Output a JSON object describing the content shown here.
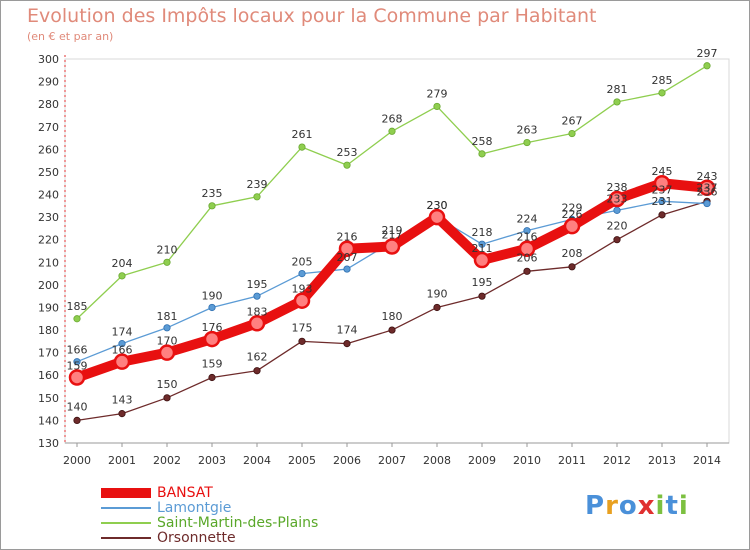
{
  "header": {
    "title": "Evolution des Impôts locaux pour la Commune par Habitant",
    "subtitle": "(en € et par an)"
  },
  "logo": {
    "letters": [
      "P",
      "r",
      "o",
      "x",
      "i",
      "t",
      "i"
    ],
    "colors": [
      "#4a90d9",
      "#e8a020",
      "#4a90d9",
      "#e03030",
      "#7cc040",
      "#4a90d9",
      "#7cc040"
    ]
  },
  "chart_data": {
    "type": "line",
    "title": "Evolution des Impôts locaux pour la Commune par Habitant",
    "subtitle": "(en € et par an)",
    "x": [
      "2000",
      "2001",
      "2002",
      "2003",
      "2004",
      "2005",
      "2006",
      "2007",
      "2008",
      "2009",
      "2010",
      "2011",
      "2012",
      "2013",
      "2014"
    ],
    "ylim": [
      130,
      300
    ],
    "yticks": [
      130,
      140,
      150,
      160,
      170,
      180,
      190,
      200,
      210,
      220,
      230,
      240,
      250,
      260,
      270,
      280,
      290,
      300
    ],
    "grid": false,
    "legend": "bottom-left",
    "series": [
      {
        "name": "BANSAT",
        "color": "#e81010",
        "values": [
          159,
          166,
          170,
          176,
          183,
          193,
          216,
          217,
          230,
          211,
          216,
          226,
          238,
          245,
          243
        ]
      },
      {
        "name": "Lamontgie",
        "color": "#5b9bd5",
        "values": [
          166,
          174,
          181,
          190,
          195,
          205,
          207,
          219,
          230,
          218,
          224,
          229,
          233,
          237,
          236
        ]
      },
      {
        "name": "Saint-Martin-des-Plains",
        "color": "#8fce4f",
        "values": [
          185,
          204,
          210,
          235,
          239,
          261,
          253,
          268,
          279,
          258,
          263,
          267,
          281,
          285,
          297
        ]
      },
      {
        "name": "Orsonnette",
        "color": "#6e2b2b",
        "values": [
          140,
          143,
          150,
          159,
          162,
          175,
          174,
          180,
          190,
          195,
          206,
          208,
          220,
          231,
          237
        ]
      }
    ]
  }
}
